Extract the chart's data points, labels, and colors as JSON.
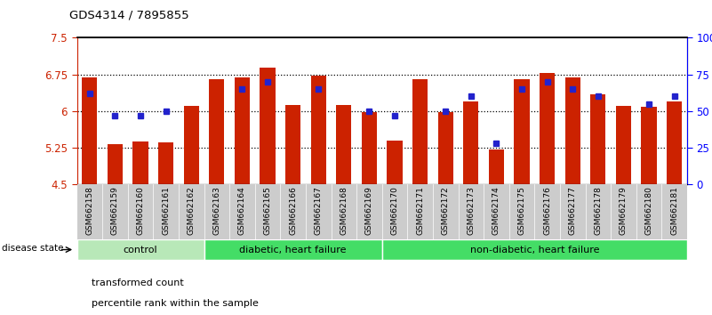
{
  "title": "GDS4314 / 7895855",
  "samples": [
    "GSM662158",
    "GSM662159",
    "GSM662160",
    "GSM662161",
    "GSM662162",
    "GSM662163",
    "GSM662164",
    "GSM662165",
    "GSM662166",
    "GSM662167",
    "GSM662168",
    "GSM662169",
    "GSM662170",
    "GSM662171",
    "GSM662172",
    "GSM662173",
    "GSM662174",
    "GSM662175",
    "GSM662176",
    "GSM662177",
    "GSM662178",
    "GSM662179",
    "GSM662180",
    "GSM662181"
  ],
  "red_values": [
    6.68,
    5.32,
    5.37,
    5.35,
    6.1,
    6.65,
    6.68,
    6.88,
    6.12,
    6.72,
    6.12,
    5.97,
    5.4,
    6.65,
    5.97,
    6.2,
    5.22,
    6.65,
    6.78,
    6.68,
    6.35,
    6.1,
    6.08,
    6.2
  ],
  "blue_percentiles": [
    62,
    47,
    47,
    50,
    null,
    null,
    65,
    70,
    null,
    65,
    null,
    50,
    47,
    null,
    50,
    60,
    28,
    65,
    70,
    65,
    60,
    null,
    55,
    60
  ],
  "ylim_left": [
    4.5,
    7.5
  ],
  "ylim_right": [
    0,
    100
  ],
  "yticks_left": [
    4.5,
    5.25,
    6.0,
    6.75,
    7.5
  ],
  "ytick_labels_left": [
    "4.5",
    "5.25",
    "6",
    "6.75",
    "7.5"
  ],
  "yticks_right": [
    0,
    25,
    50,
    75,
    100
  ],
  "ytick_labels_right": [
    "0",
    "25",
    "50",
    "75",
    "100%"
  ],
  "red_bar_color": "#cc2200",
  "blue_dot_color": "#2222cc",
  "bar_bottom": 4.5,
  "groups": [
    {
      "label": "control",
      "start": 0,
      "end": 5
    },
    {
      "label": "diabetic, heart failure",
      "start": 5,
      "end": 12
    },
    {
      "label": "non-diabetic, heart failure",
      "start": 12,
      "end": 24
    }
  ],
  "group_colors": [
    "#b8e8b8",
    "#44dd66",
    "#44dd66"
  ],
  "disease_state_label": "disease state",
  "legend_items": [
    {
      "color": "#cc2200",
      "label": "transformed count"
    },
    {
      "color": "#2222cc",
      "label": "percentile rank within the sample"
    }
  ],
  "xlabel_bg": "#cccccc",
  "bar_width": 0.6
}
